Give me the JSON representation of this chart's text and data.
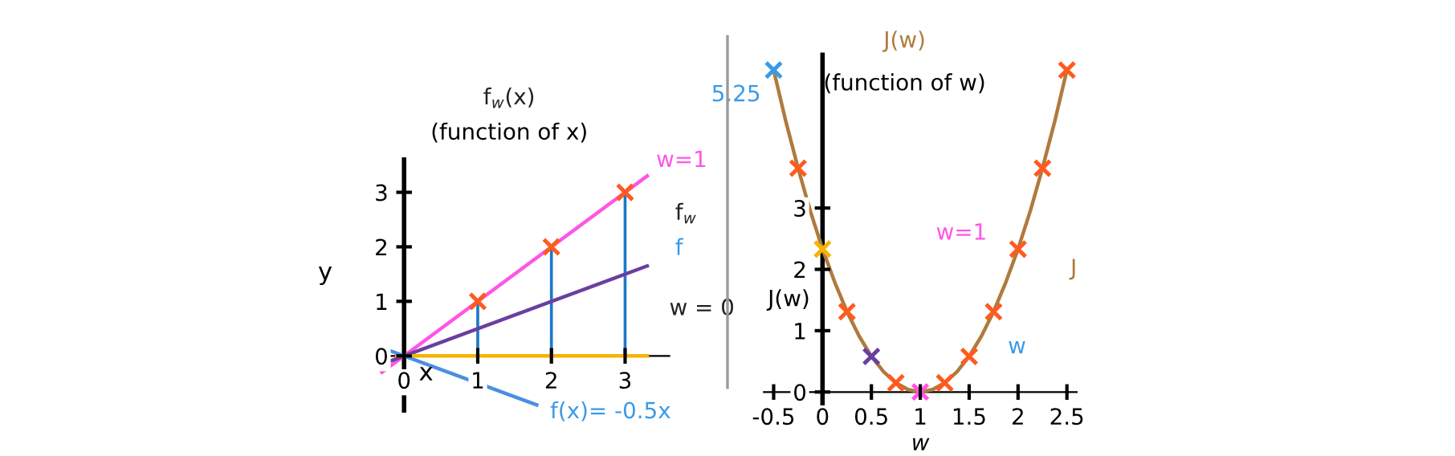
{
  "chart_data": [
    {
      "type": "line",
      "title": "f$_{w}$(x)",
      "subtitle": "(function of x)",
      "xlabel": "x",
      "ylabel": "y",
      "xlim": [
        -0.35,
        3.6
      ],
      "ylim": [
        -1.0,
        3.6
      ],
      "xticks": [
        0,
        1,
        2,
        3
      ],
      "yticks": [
        0,
        1,
        2,
        3
      ],
      "grid": false,
      "legend": false,
      "series": [
        {
          "color": "#ff55e6",
          "x": [
            -0.3,
            3.3
          ],
          "values": [
            -0.3,
            3.3
          ]
        },
        {
          "color": "#6a3fa0",
          "x": [
            -0.2,
            3.3
          ],
          "values": [
            -0.1,
            1.65
          ]
        },
        {
          "color": "#f5b400",
          "x": [
            -0.1,
            3.3
          ],
          "values": [
            0,
            0
          ]
        },
        {
          "color": "#4a8fe0",
          "x": [
            -0.2,
            1.8
          ],
          "values": [
            0.1,
            -0.9
          ]
        },
        {
          "type": "bar",
          "color": "#1f78c8",
          "x": [
            1,
            2,
            3
          ],
          "values": [
            1,
            2,
            3
          ]
        },
        {
          "type": "scatter",
          "color": "#ff5a1f",
          "marker": "cross",
          "x": [
            1,
            2,
            3
          ],
          "values": [
            1,
            2,
            3
          ]
        }
      ],
      "annotations": [
        {
          "text": "w=1",
          "x": 3.3,
          "y": 3.3
        },
        "f$_{w}$",
        "f",
        "w = 0",
        {
          "text": "f(x)= -0.5x",
          "x": 1.8,
          "y": -0.9
        }
      ]
    },
    {
      "type": "line",
      "title": "J(w)",
      "subtitle": "(function of w)",
      "xlabel": "w",
      "ylabel": "J(w)",
      "xlim": [
        -0.6,
        2.6
      ],
      "ylim": [
        -0.3,
        5.5
      ],
      "xticks": [
        -0.5,
        0,
        0.5,
        1,
        1.5,
        2,
        2.5
      ],
      "yticks": [
        0,
        1,
        2,
        3
      ],
      "grid": false,
      "legend": false,
      "series": [
        {
          "color": "#b07a3e",
          "x": [
            -0.5,
            -0.375,
            -0.25,
            -0.125,
            0,
            0.125,
            0.25,
            0.375,
            0.5,
            0.625,
            0.75,
            0.875,
            1,
            1.125,
            1.25,
            1.375,
            1.5,
            1.625,
            1.75,
            1.875,
            2,
            2.125,
            2.25,
            2.375,
            2.5
          ],
          "values": [
            5.25,
            4.41,
            3.65,
            2.95,
            2.33,
            1.79,
            1.31,
            0.91,
            0.58,
            0.33,
            0.15,
            0.04,
            0,
            0.04,
            0.15,
            0.33,
            0.58,
            0.91,
            1.31,
            1.79,
            2.33,
            2.95,
            3.65,
            4.41,
            5.25
          ]
        },
        {
          "type": "scatter",
          "marker": "cross",
          "x": [
            -0.5,
            -0.25,
            0,
            0.25,
            0.5,
            0.75,
            1,
            1.25,
            1.5,
            1.75,
            2,
            2.25,
            2.5
          ],
          "values": [
            5.25,
            3.65,
            2.33,
            1.31,
            0.58,
            0.15,
            0,
            0.15,
            0.58,
            1.31,
            2.33,
            3.65,
            5.25
          ],
          "colors": [
            "#3a9ae8",
            "#ff5a1f",
            "#f5b400",
            "#ff5a1f",
            "#6a3fa0",
            "#ff5a1f",
            "#ff55e6",
            "#ff5a1f",
            "#ff5a1f",
            "#ff5a1f",
            "#ff5a1f",
            "#ff5a1f",
            "#ff5a1f"
          ]
        }
      ],
      "annotations": [
        {
          "text": "5.25",
          "x": -0.5,
          "y": 5.25
        },
        "w=1",
        "J",
        "w"
      ]
    }
  ]
}
